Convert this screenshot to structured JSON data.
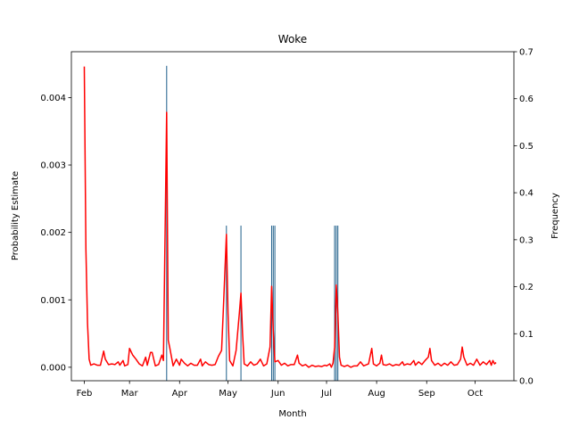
{
  "chart_data": {
    "type": "line",
    "title": "Woke",
    "xlabel": "Month",
    "ylabel_left": "Probability Estimate",
    "ylabel_right": "Frequency",
    "x_tick_labels": [
      "Feb",
      "Mar",
      "Apr",
      "May",
      "Jun",
      "Jul",
      "Aug",
      "Sep",
      "Oct"
    ],
    "x_ticks": [
      "2021-02-01",
      "2021-03-01",
      "2021-04-01",
      "2021-05-01",
      "2021-06-01",
      "2021-07-01",
      "2021-08-01",
      "2021-09-01",
      "2021-10-01"
    ],
    "xlim": [
      "2021-01-24",
      "2021-10-25"
    ],
    "ylim_left": [
      -0.0002,
      0.00468
    ],
    "ylim_right": [
      0.0,
      0.7
    ],
    "y_left_ticks": [
      0.0,
      0.001,
      0.002,
      0.003,
      0.004
    ],
    "y_left_tick_labels": [
      "0.000",
      "0.001",
      "0.002",
      "0.003",
      "0.004"
    ],
    "y_right_ticks": [
      0.0,
      0.1,
      0.2,
      0.3,
      0.4,
      0.5,
      0.6,
      0.7
    ],
    "y_right_tick_labels": [
      "0.0",
      "0.1",
      "0.2",
      "0.3",
      "0.4",
      "0.5",
      "0.6",
      "0.7"
    ],
    "series": [
      {
        "axis": "left",
        "style": "line",
        "color": "#ff0000",
        "points": [
          [
            "2021-02-01",
            0.00446
          ],
          [
            "2021-02-02",
            0.00175
          ],
          [
            "2021-02-03",
            0.00065
          ],
          [
            "2021-02-04",
            0.00012
          ],
          [
            "2021-02-05",
            3e-05
          ],
          [
            "2021-02-07",
            5e-05
          ],
          [
            "2021-02-09",
            3e-05
          ],
          [
            "2021-02-11",
            3e-05
          ],
          [
            "2021-02-13",
            0.00024
          ],
          [
            "2021-02-14",
            0.00012
          ],
          [
            "2021-02-16",
            4e-05
          ],
          [
            "2021-02-18",
            5e-05
          ],
          [
            "2021-02-20",
            4e-05
          ],
          [
            "2021-02-22",
            8e-05
          ],
          [
            "2021-02-23",
            3e-05
          ],
          [
            "2021-02-25",
            0.0001
          ],
          [
            "2021-02-26",
            2e-05
          ],
          [
            "2021-02-28",
            4e-05
          ],
          [
            "2021-03-01",
            0.00028
          ],
          [
            "2021-03-03",
            0.00018
          ],
          [
            "2021-03-05",
            0.00012
          ],
          [
            "2021-03-07",
            5e-05
          ],
          [
            "2021-03-09",
            2e-05
          ],
          [
            "2021-03-11",
            0.00015
          ],
          [
            "2021-03-12",
            3e-05
          ],
          [
            "2021-03-14",
            0.00022
          ],
          [
            "2021-03-15",
            0.00022
          ],
          [
            "2021-03-17",
            2e-05
          ],
          [
            "2021-03-19",
            4e-05
          ],
          [
            "2021-03-21",
            0.00018
          ],
          [
            "2021-03-22",
            0.0001
          ],
          [
            "2021-03-24",
            0.00378
          ],
          [
            "2021-03-25",
            0.0004
          ],
          [
            "2021-03-26",
            0.00028
          ],
          [
            "2021-03-28",
            2e-05
          ],
          [
            "2021-03-30",
            0.00012
          ],
          [
            "2021-04-01",
            3e-05
          ],
          [
            "2021-04-02",
            0.00012
          ],
          [
            "2021-04-04",
            6e-05
          ],
          [
            "2021-04-06",
            2e-05
          ],
          [
            "2021-04-08",
            6e-05
          ],
          [
            "2021-04-10",
            3e-05
          ],
          [
            "2021-04-12",
            3e-05
          ],
          [
            "2021-04-14",
            0.00012
          ],
          [
            "2021-04-15",
            2e-05
          ],
          [
            "2021-04-17",
            8e-05
          ],
          [
            "2021-04-19",
            4e-05
          ],
          [
            "2021-04-21",
            3e-05
          ],
          [
            "2021-04-23",
            4e-05
          ],
          [
            "2021-04-25",
            0.00016
          ],
          [
            "2021-04-27",
            0.00025
          ],
          [
            "2021-04-28",
            0.0008
          ],
          [
            "2021-04-30",
            0.00197
          ],
          [
            "2021-05-01",
            0.0008
          ],
          [
            "2021-05-02",
            0.0001
          ],
          [
            "2021-05-04",
            2e-05
          ],
          [
            "2021-05-06",
            0.00025
          ],
          [
            "2021-05-08",
            0.0008
          ],
          [
            "2021-05-09",
            0.0011
          ],
          [
            "2021-05-10",
            0.0005
          ],
          [
            "2021-05-11",
            5e-05
          ],
          [
            "2021-05-13",
            2e-05
          ],
          [
            "2021-05-15",
            8e-05
          ],
          [
            "2021-05-17",
            3e-05
          ],
          [
            "2021-05-19",
            5e-05
          ],
          [
            "2021-05-21",
            0.00012
          ],
          [
            "2021-05-23",
            2e-05
          ],
          [
            "2021-05-25",
            5e-05
          ],
          [
            "2021-05-27",
            0.0003
          ],
          [
            "2021-05-28",
            0.0012
          ],
          [
            "2021-05-29",
            0.00055
          ],
          [
            "2021-05-30",
            8e-05
          ],
          [
            "2021-06-01",
            0.0001
          ],
          [
            "2021-06-03",
            3e-05
          ],
          [
            "2021-06-05",
            6e-05
          ],
          [
            "2021-06-07",
            2e-05
          ],
          [
            "2021-06-09",
            4e-05
          ],
          [
            "2021-06-11",
            4e-05
          ],
          [
            "2021-06-13",
            0.00018
          ],
          [
            "2021-06-14",
            6e-05
          ],
          [
            "2021-06-16",
            2e-05
          ],
          [
            "2021-06-18",
            4e-05
          ],
          [
            "2021-06-20",
            0.0
          ],
          [
            "2021-06-22",
            3e-05
          ],
          [
            "2021-06-24",
            1e-05
          ],
          [
            "2021-06-26",
            2e-05
          ],
          [
            "2021-06-28",
            1e-05
          ],
          [
            "2021-06-30",
            3e-05
          ],
          [
            "2021-07-01",
            2e-05
          ],
          [
            "2021-07-03",
            5e-05
          ],
          [
            "2021-07-04",
            0.0
          ],
          [
            "2021-07-05",
            6e-05
          ],
          [
            "2021-07-06",
            0.0003
          ],
          [
            "2021-07-07",
            0.00122
          ],
          [
            "2021-07-08",
            0.0008
          ],
          [
            "2021-07-09",
            0.00015
          ],
          [
            "2021-07-10",
            3e-05
          ],
          [
            "2021-07-12",
            1e-05
          ],
          [
            "2021-07-14",
            3e-05
          ],
          [
            "2021-07-16",
            0.0
          ],
          [
            "2021-07-18",
            2e-05
          ],
          [
            "2021-07-20",
            2e-05
          ],
          [
            "2021-07-22",
            8e-05
          ],
          [
            "2021-07-24",
            2e-05
          ],
          [
            "2021-07-27",
            5e-05
          ],
          [
            "2021-07-29",
            0.00028
          ],
          [
            "2021-07-30",
            5e-05
          ],
          [
            "2021-08-01",
            2e-05
          ],
          [
            "2021-08-03",
            6e-05
          ],
          [
            "2021-08-04",
            0.00018
          ],
          [
            "2021-08-05",
            4e-05
          ],
          [
            "2021-08-07",
            3e-05
          ],
          [
            "2021-08-09",
            5e-05
          ],
          [
            "2021-08-11",
            2e-05
          ],
          [
            "2021-08-13",
            4e-05
          ],
          [
            "2021-08-15",
            3e-05
          ],
          [
            "2021-08-17",
            8e-05
          ],
          [
            "2021-08-18",
            3e-05
          ],
          [
            "2021-08-20",
            5e-05
          ],
          [
            "2021-08-22",
            4e-05
          ],
          [
            "2021-08-24",
            0.0001
          ],
          [
            "2021-08-25",
            3e-05
          ],
          [
            "2021-08-27",
            8e-05
          ],
          [
            "2021-08-29",
            4e-05
          ],
          [
            "2021-08-31",
            0.0001
          ],
          [
            "2021-09-02",
            0.00015
          ],
          [
            "2021-09-03",
            0.00028
          ],
          [
            "2021-09-04",
            0.0001
          ],
          [
            "2021-09-06",
            3e-05
          ],
          [
            "2021-09-08",
            6e-05
          ],
          [
            "2021-09-10",
            2e-05
          ],
          [
            "2021-09-12",
            6e-05
          ],
          [
            "2021-09-14",
            3e-05
          ],
          [
            "2021-09-16",
            8e-05
          ],
          [
            "2021-09-18",
            3e-05
          ],
          [
            "2021-09-20",
            4e-05
          ],
          [
            "2021-09-22",
            0.00012
          ],
          [
            "2021-09-23",
            0.0003
          ],
          [
            "2021-09-24",
            0.00015
          ],
          [
            "2021-09-26",
            3e-05
          ],
          [
            "2021-09-28",
            6e-05
          ],
          [
            "2021-09-30",
            3e-05
          ],
          [
            "2021-10-02",
            0.00012
          ],
          [
            "2021-10-04",
            3e-05
          ],
          [
            "2021-10-06",
            8e-05
          ],
          [
            "2021-10-08",
            4e-05
          ],
          [
            "2021-10-10",
            0.0001
          ],
          [
            "2021-10-11",
            3e-05
          ],
          [
            "2021-10-12",
            0.0001
          ],
          [
            "2021-10-13",
            5e-05
          ],
          [
            "2021-10-14",
            7e-05
          ]
        ]
      },
      {
        "axis": "right",
        "style": "bar",
        "color": "#1f5f8b",
        "points": [
          [
            "2021-03-24",
            0.67
          ],
          [
            "2021-04-30",
            0.33
          ],
          [
            "2021-05-09",
            0.33
          ],
          [
            "2021-05-28",
            0.33
          ],
          [
            "2021-05-29",
            0.33
          ],
          [
            "2021-05-30",
            0.33
          ],
          [
            "2021-07-06",
            0.33
          ],
          [
            "2021-07-07",
            0.33
          ],
          [
            "2021-07-08",
            0.33
          ]
        ]
      }
    ],
    "grid": false,
    "legend": false
  }
}
